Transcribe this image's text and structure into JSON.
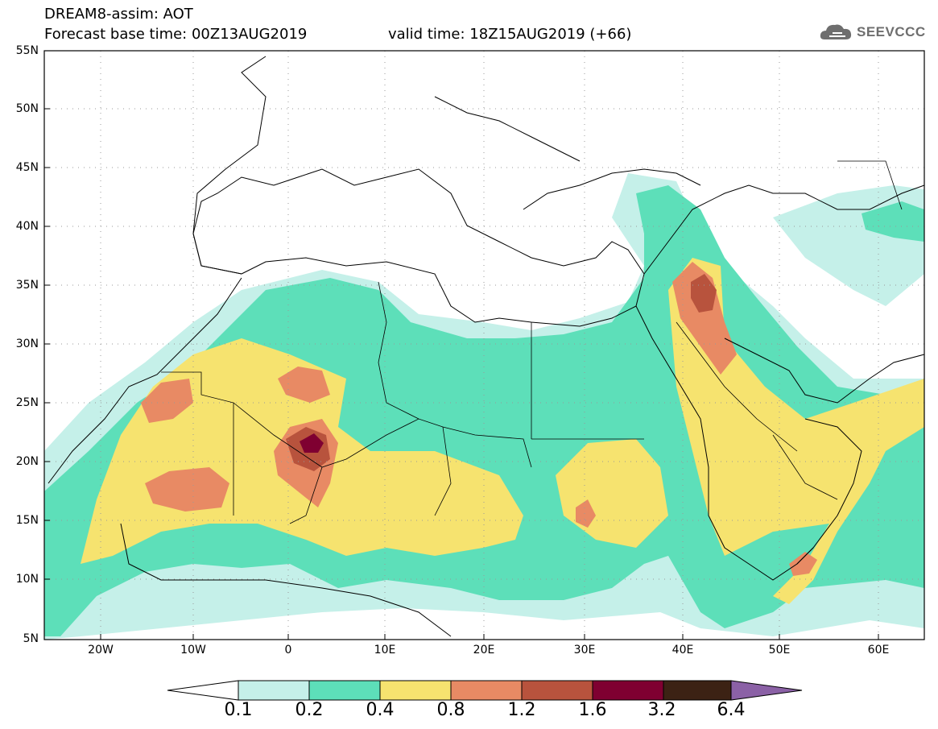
{
  "header": {
    "title": "DREAM8-assim: AOT",
    "base_time": "Forecast base time: 00Z13AUG2019",
    "valid_time": "valid time: 18Z15AUG2019 (+66)"
  },
  "logo": {
    "text": "SEEVCCC",
    "icon": "cloud-icon"
  },
  "map": {
    "lat_labels": [
      "55N",
      "50N",
      "45N",
      "40N",
      "35N",
      "30N",
      "25N",
      "20N",
      "15N",
      "10N",
      "5N"
    ],
    "lon_labels": [
      "20W",
      "10W",
      "0",
      "10E",
      "20E",
      "30E",
      "40E",
      "50E",
      "60E"
    ]
  },
  "colorbar": {
    "labels": [
      "0.1",
      "0.2",
      "0.4",
      "0.8",
      "1.2",
      "1.6",
      "3.2",
      "6.4"
    ],
    "colors": [
      "#ffffff",
      "#c5f0e9",
      "#5ddfb9",
      "#f6e36f",
      "#e88a64",
      "#b8533d",
      "#7f0031",
      "#3c2214",
      "#8b61a6"
    ]
  }
}
